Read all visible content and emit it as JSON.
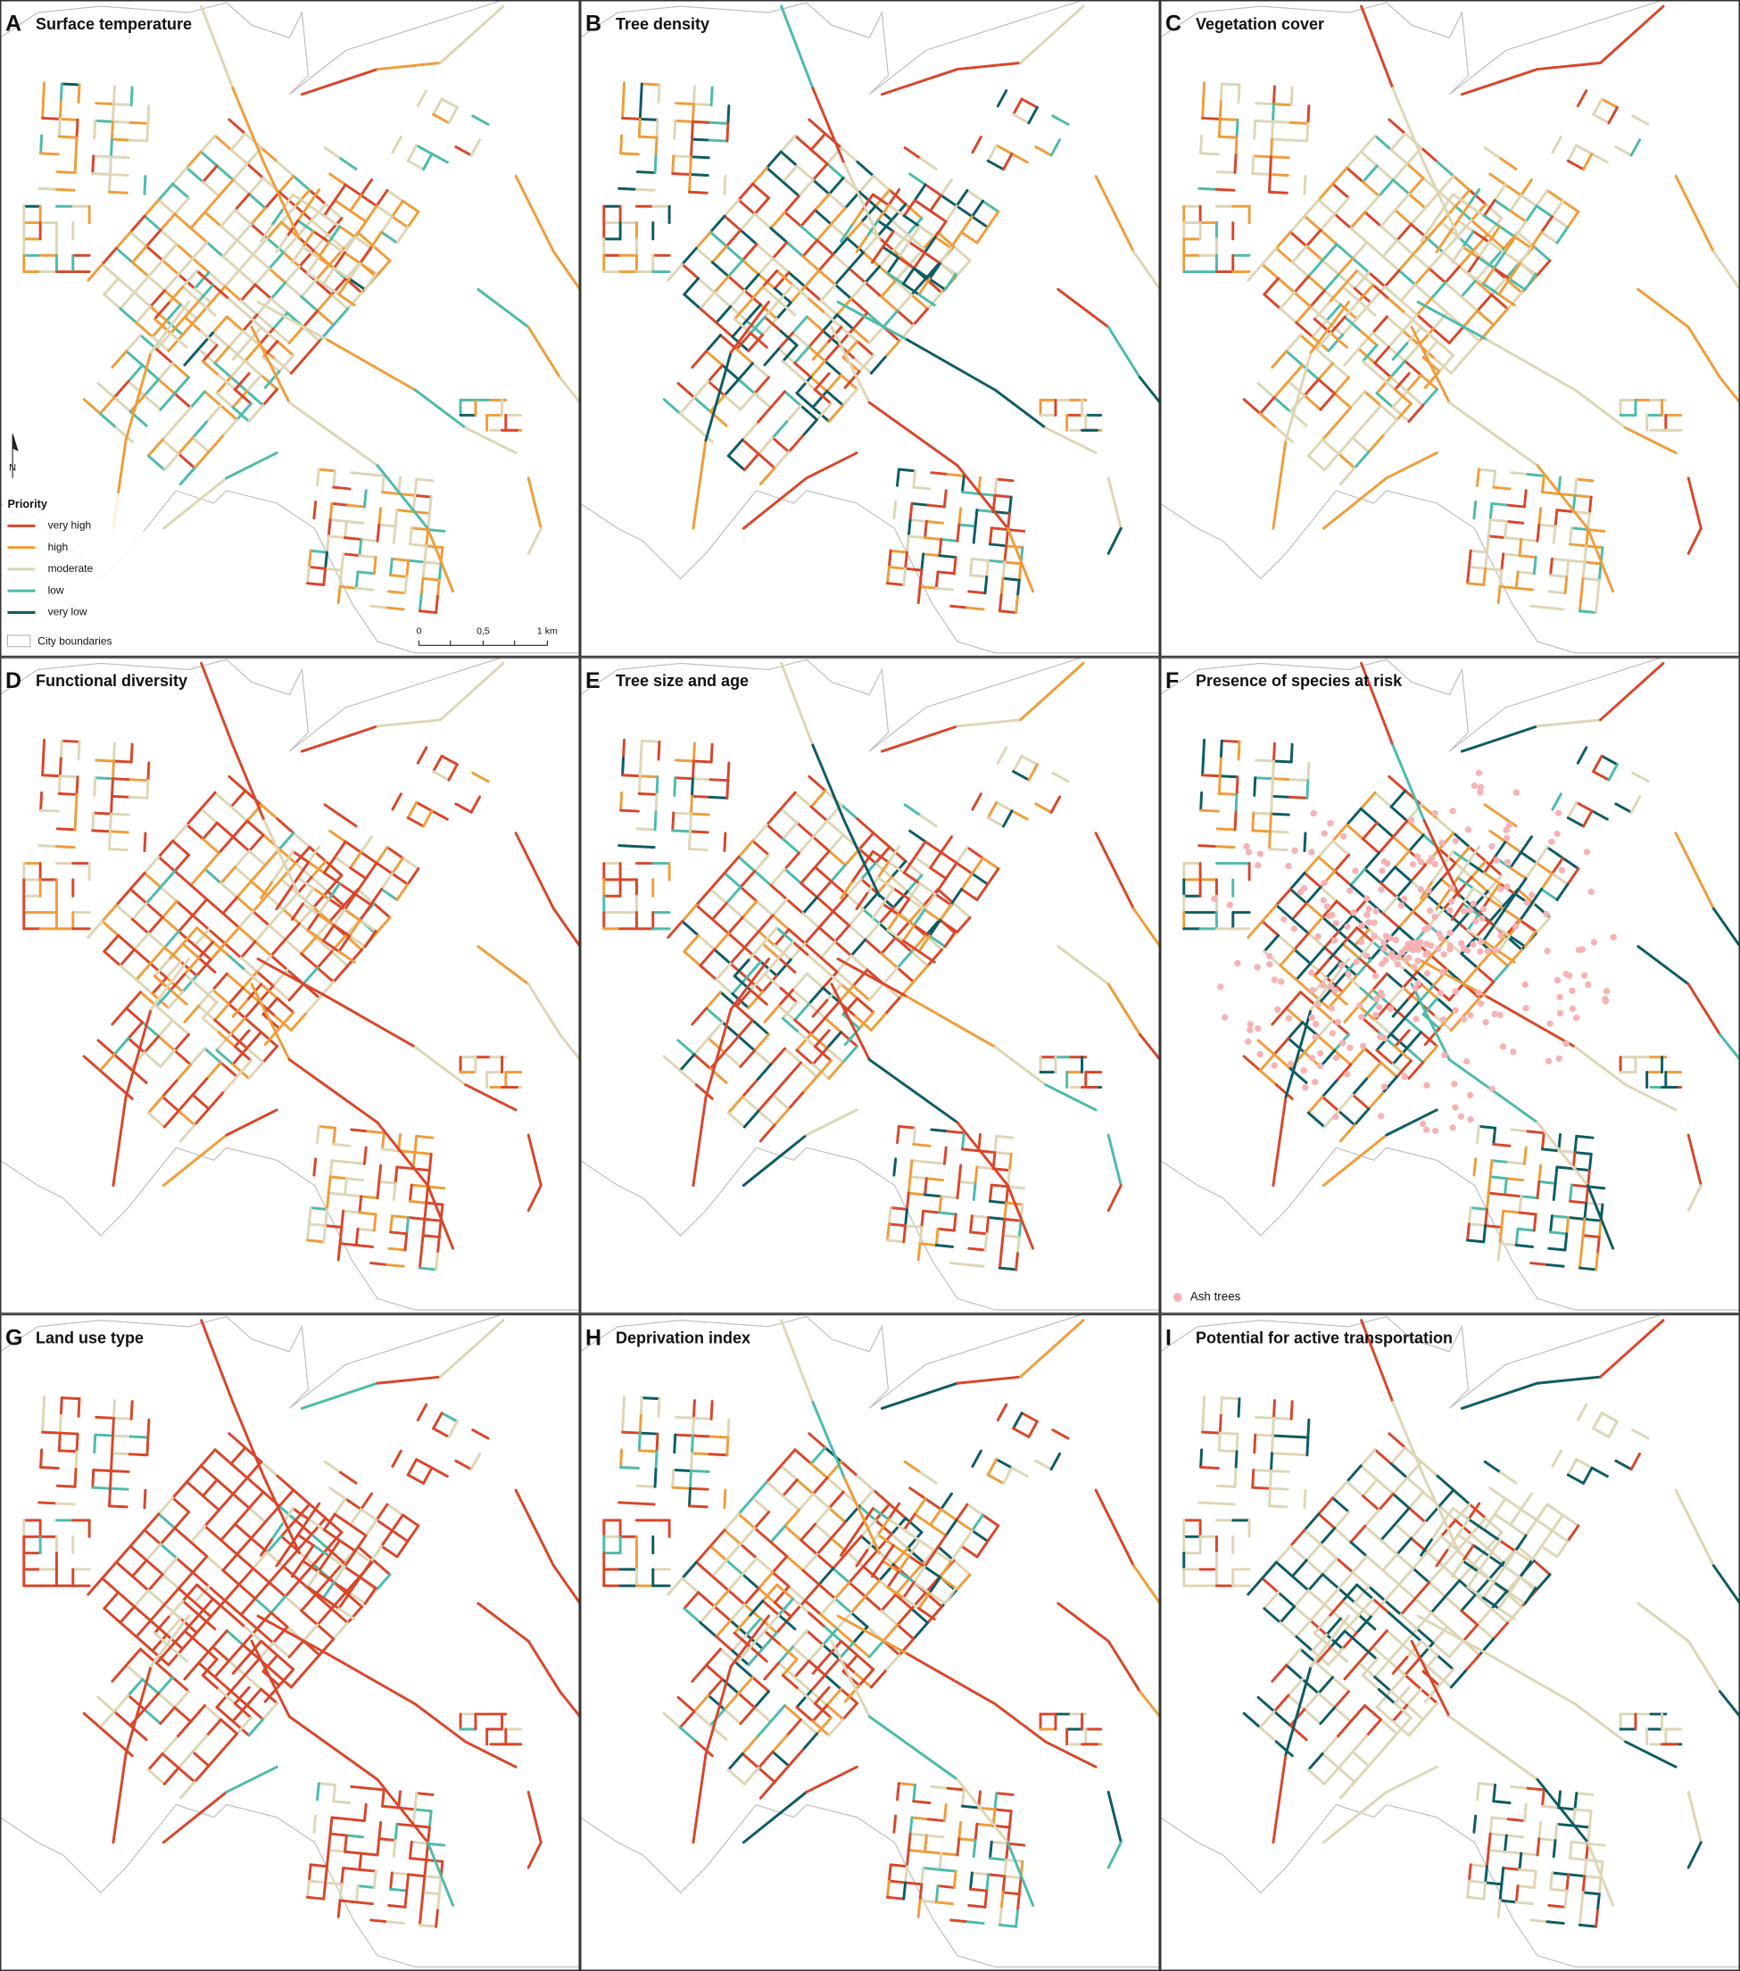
{
  "panels": [
    {
      "letter": "A",
      "title": "Surface temperature"
    },
    {
      "letter": "B",
      "title": "Tree density"
    },
    {
      "letter": "C",
      "title": "Vegetation cover"
    },
    {
      "letter": "D",
      "title": "Functional diversity"
    },
    {
      "letter": "E",
      "title": "Tree size and age"
    },
    {
      "letter": "F",
      "title": "Presence of species at risk"
    },
    {
      "letter": "G",
      "title": "Land use type"
    },
    {
      "letter": "H",
      "title": "Deprivation index"
    },
    {
      "letter": "I",
      "title": "Potential for active transportation"
    }
  ],
  "legend": {
    "title": "Priority",
    "items": [
      {
        "label": "very high",
        "color": "#d8462b"
      },
      {
        "label": "high",
        "color": "#ef9d3a"
      },
      {
        "label": "moderate",
        "color": "#ddd6b6"
      },
      {
        "label": "low",
        "color": "#4dbbaa"
      },
      {
        "label": "very low",
        "color": "#0e5c62"
      }
    ],
    "boundary": "City boundaries"
  },
  "scale_bar": {
    "labels": [
      "0",
      "0,5",
      "1 km"
    ]
  },
  "north": "N",
  "ash_legend": {
    "label": "Ash trees",
    "color": "#f5b3b5"
  }
}
